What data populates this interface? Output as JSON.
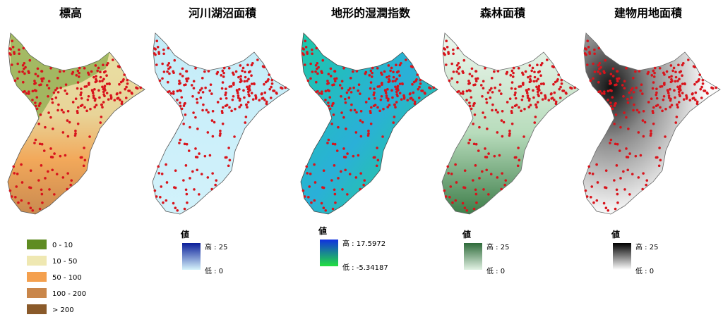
{
  "panels": [
    {
      "title": "標高",
      "legend": {
        "items": [
          {
            "label": "0 - 10",
            "color": "#5f8c22"
          },
          {
            "label": "10 - 50",
            "color": "#efe8b2"
          },
          {
            "label": "50 - 100",
            "color": "#f4a04e"
          },
          {
            "label": "100 - 200",
            "color": "#c9864a"
          },
          {
            "label": "> 200",
            "color": "#8a5a2a"
          }
        ]
      }
    },
    {
      "title": "河川湖沼面積",
      "legend": {
        "heading": "値",
        "high": "高 : 25",
        "low": "低 : 0",
        "colors": [
          "#0a1e9a",
          "#d6f3fb"
        ]
      }
    },
    {
      "title": "地形的湿潤指数",
      "legend": {
        "heading": "値",
        "high": "高 : 17.5972",
        "low": "低 : -5.34187",
        "colors": [
          "#1030e0",
          "#22e040"
        ]
      }
    },
    {
      "title": "森林面積",
      "legend": {
        "heading": "値",
        "high": "高 : 25",
        "low": "低 : 0",
        "colors": [
          "#2e6b3a",
          "#e2f2e4"
        ]
      }
    },
    {
      "title": "建物用地面積",
      "legend": {
        "heading": "値",
        "high": "高 : 25",
        "low": "低 : 0",
        "colors": [
          "#000000",
          "#ffffff"
        ]
      }
    }
  ]
}
